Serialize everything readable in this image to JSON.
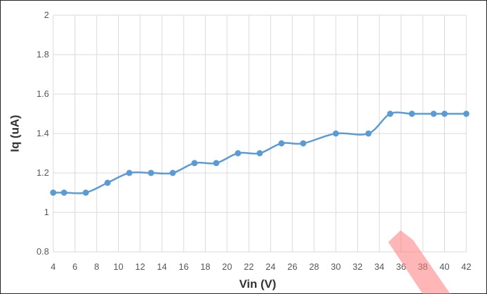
{
  "chart_data": {
    "type": "line",
    "title": "",
    "xlabel": "Vin (V)",
    "ylabel": "Iq (uA)",
    "xlim": [
      4,
      42
    ],
    "ylim": [
      0.8,
      2
    ],
    "x_ticks": [
      4,
      6,
      8,
      10,
      12,
      14,
      16,
      18,
      20,
      22,
      24,
      26,
      28,
      30,
      32,
      34,
      36,
      38,
      40,
      42
    ],
    "y_ticks": [
      0.8,
      1,
      1.2,
      1.4,
      1.6,
      1.8,
      2
    ],
    "x_tick_labels": [
      "4",
      "6",
      "8",
      "10",
      "12",
      "14",
      "16",
      "18",
      "20",
      "22",
      "24",
      "26",
      "28",
      "30",
      "32",
      "34",
      "36",
      "38",
      "40",
      "42"
    ],
    "y_tick_labels": [
      "0.8",
      "1",
      "1.2",
      "1.4",
      "1.6",
      "1.8",
      "2"
    ],
    "grid": true,
    "legend": "none",
    "series": [
      {
        "color": "#5b9bd5",
        "x": [
          4,
          5,
          7,
          9,
          11,
          13,
          15,
          17,
          19,
          21,
          23,
          25,
          27,
          30,
          33,
          35,
          37,
          39,
          40,
          42
        ],
        "y": [
          1.1,
          1.1,
          1.1,
          1.15,
          1.2,
          1.2,
          1.2,
          1.25,
          1.25,
          1.3,
          1.3,
          1.35,
          1.35,
          1.4,
          1.4,
          1.5,
          1.5,
          1.5,
          1.5,
          1.5
        ]
      }
    ]
  }
}
